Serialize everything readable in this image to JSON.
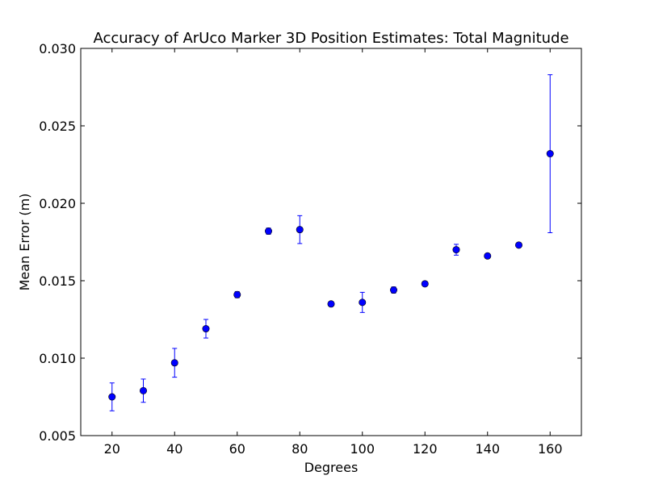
{
  "chart_data": {
    "type": "scatter",
    "title": "Accuracy of ArUco Marker 3D Position Estimates: Total Magnitude",
    "xlabel": "Degrees",
    "ylabel": "Mean Error (m)",
    "xlim": [
      10,
      170
    ],
    "ylim": [
      0.005,
      0.03
    ],
    "xticks": [
      20,
      40,
      60,
      80,
      100,
      120,
      140,
      160
    ],
    "xtick_labels": [
      "20",
      "40",
      "60",
      "80",
      "100",
      "120",
      "140",
      "160"
    ],
    "yticks": [
      0.005,
      0.01,
      0.015,
      0.02,
      0.025,
      0.03
    ],
    "ytick_labels": [
      "0.005",
      "0.010",
      "0.015",
      "0.020",
      "0.025",
      "0.030"
    ],
    "grid": false,
    "marker_color": "#0000ff",
    "errorbar_color": "#0000ff",
    "series": [
      {
        "x": [
          20,
          30,
          40,
          50,
          60,
          70,
          80,
          90,
          100,
          110,
          120,
          130,
          140,
          150,
          160
        ],
        "y": [
          0.0075,
          0.0079,
          0.0097,
          0.0119,
          0.0141,
          0.0182,
          0.0183,
          0.0135,
          0.0136,
          0.0144,
          0.0148,
          0.017,
          0.0166,
          0.0173,
          0.0232
        ],
        "yerr": [
          0.0009,
          0.00075,
          0.00093,
          0.0006,
          0.0002,
          0.0002,
          0.0009,
          7e-05,
          0.00065,
          0.0002,
          0.00012,
          0.00035,
          8e-05,
          0.0001,
          0.0051
        ]
      }
    ]
  }
}
